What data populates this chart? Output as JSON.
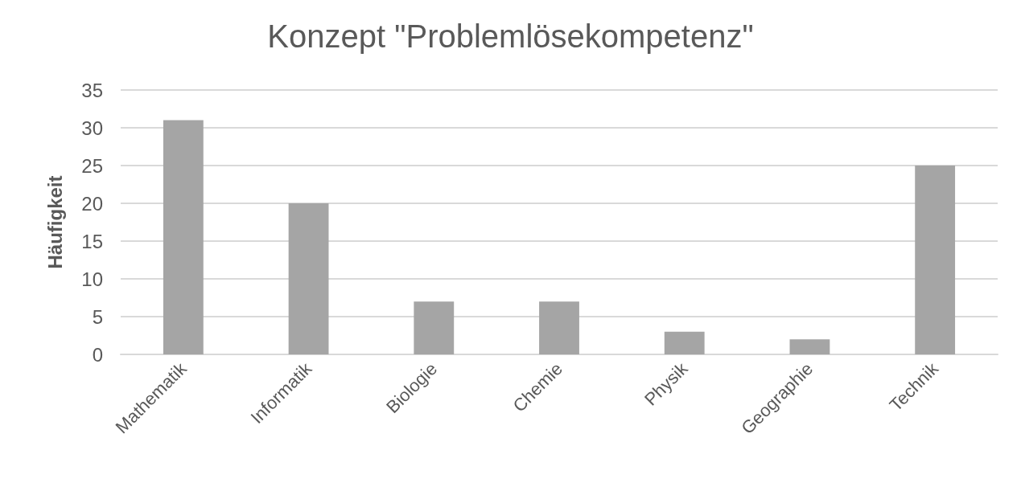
{
  "chart_data": {
    "type": "bar",
    "title": "Konzept \"Problemlösekompetenz\"",
    "ylabel": "Häufigkeit",
    "categories": [
      "Mathematik",
      "Informatik",
      "Biologie",
      "Chemie",
      "Physik",
      "Geographie",
      "Technik"
    ],
    "values": [
      31,
      20,
      7,
      7,
      3,
      2,
      25
    ],
    "color": "#a5a5a5",
    "ylim": [
      0,
      35
    ],
    "yticks": [
      0,
      5,
      10,
      15,
      20,
      25,
      30,
      35
    ],
    "grid": "y"
  }
}
